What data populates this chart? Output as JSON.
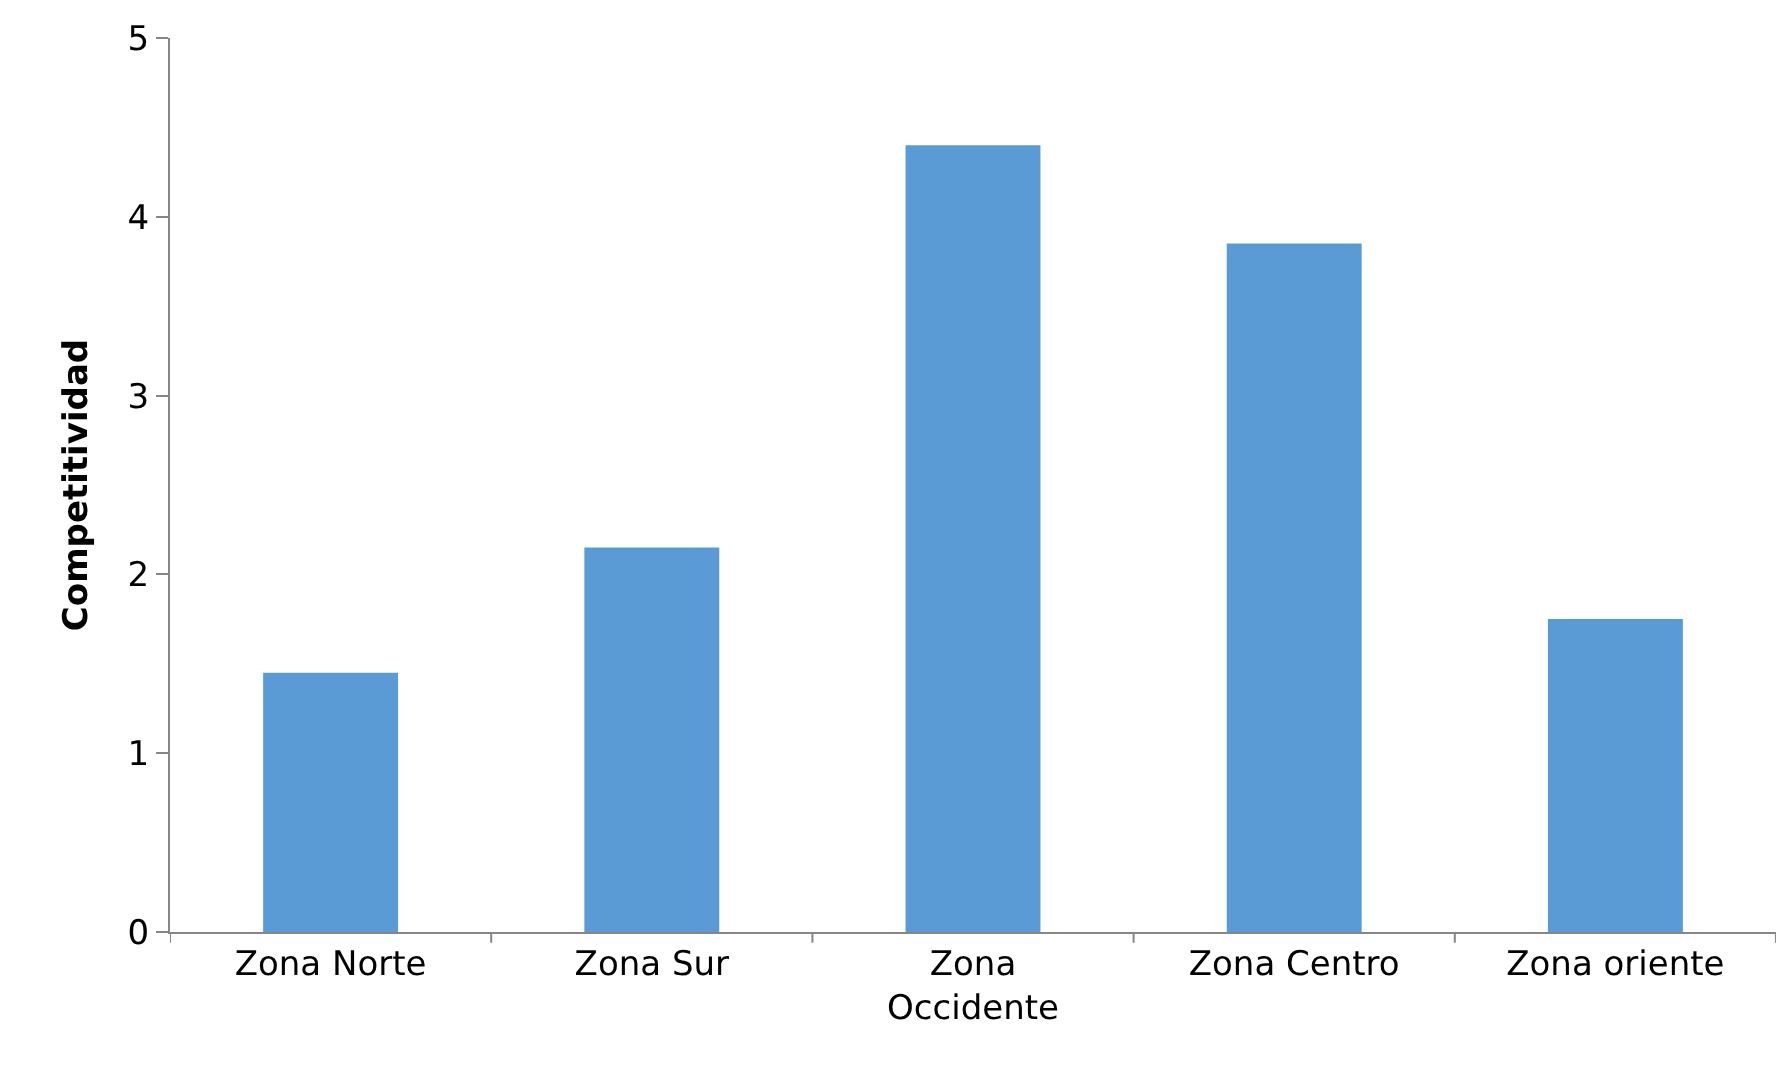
{
  "chart_data": {
    "type": "bar",
    "ylabel": "Competitividad",
    "categories": [
      "Zona Norte",
      "Zona Sur",
      "Zona Occidente",
      "Zona Centro",
      "Zona oriente"
    ],
    "values": [
      1.45,
      2.15,
      4.4,
      3.85,
      1.75
    ],
    "color": "#5b9bd5",
    "ylim": [
      0,
      5
    ],
    "yticks": [
      0,
      1,
      2,
      3,
      4,
      5
    ]
  }
}
